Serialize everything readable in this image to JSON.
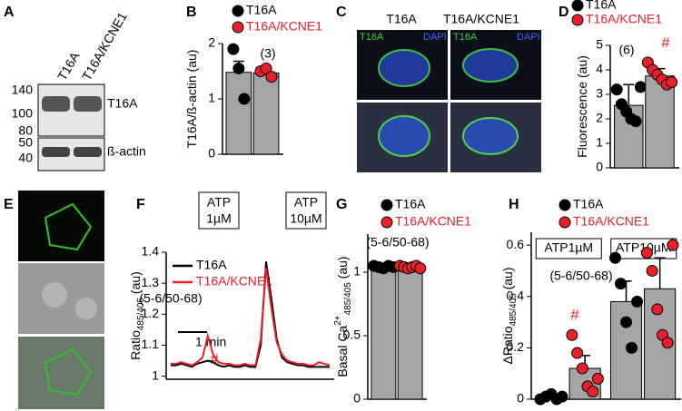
{
  "panel_a": {
    "label": "A",
    "lanes": [
      "T16A",
      "T16A/KCNE1"
    ],
    "markers": [
      "140",
      "100",
      "80",
      "50",
      "40"
    ],
    "bands": [
      "T16A",
      "ß-actin"
    ]
  },
  "panel_c": {
    "label": "C",
    "columns": [
      "T16A",
      "T16A/KCNE1"
    ],
    "channels": [
      "T16A",
      "DAPI"
    ]
  },
  "panel_e": {
    "label": "E"
  },
  "chart_data": [
    {
      "type": "bar",
      "label": "B",
      "ylabel": [
        "T16A/ß-actin (au)"
      ],
      "ylim": [
        0,
        2
      ],
      "yticks": [
        0,
        1,
        2
      ],
      "categories": [
        null
      ],
      "bar_color": "#a5a5a5",
      "annotations": [
        "(3)"
      ],
      "series": [
        {
          "name": "T16A",
          "color": "#000000",
          "values": [
            1.48
          ],
          "errors": [
            0.2
          ],
          "points": [
            [
              1.9,
              1.55,
              1.0
            ]
          ]
        },
        {
          "name": "T16A/KCNE1",
          "color": "#e8202a",
          "values": [
            1.47
          ],
          "errors": [
            0.05
          ],
          "points": [
            [
              1.5,
              1.55,
              1.4
            ]
          ]
        }
      ]
    },
    {
      "type": "bar",
      "label": "D",
      "ylabel": [
        "Fluorescence (au)"
      ],
      "ylim": [
        0,
        5
      ],
      "yticks": [
        0,
        1,
        2,
        3,
        4,
        5
      ],
      "categories": [
        null
      ],
      "bar_color": "#a5a5a5",
      "annotations": [
        "(6)",
        "#"
      ],
      "series": [
        {
          "name": "T16A",
          "color": "#000000",
          "values": [
            2.55
          ],
          "errors": [
            0.85
          ],
          "points": [
            [
              3.2,
              2.6,
              2.3,
              2.0,
              1.9,
              3.3
            ]
          ]
        },
        {
          "name": "T16A/KCNE1",
          "color": "#e8202a",
          "values": [
            3.75
          ],
          "errors": [
            0.3
          ],
          "points": [
            [
              4.3,
              4.0,
              3.8,
              3.6,
              3.4,
              3.5
            ]
          ]
        }
      ]
    },
    {
      "type": "line",
      "label": "F",
      "ylabel": [
        "Ratio",
        "485/405",
        " (au)"
      ],
      "ylim": [
        0.99,
        1.4
      ],
      "yticks": [
        1,
        1.1,
        1.2,
        1.3,
        1.4
      ],
      "xlim": [
        0,
        30
      ],
      "x": [
        0,
        1,
        2,
        3,
        4,
        5,
        6,
        7,
        8,
        9,
        10,
        11,
        12,
        13,
        14,
        15,
        16,
        17,
        18,
        19,
        20,
        21,
        22,
        23,
        24,
        25,
        26,
        27,
        28,
        29,
        30
      ],
      "stimuli": [
        [
          "ATP",
          "1µM"
        ],
        [
          "ATP",
          "10µM"
        ]
      ],
      "annotations": [
        "(5-6/50-68)",
        "1 min",
        "#"
      ],
      "series": [
        {
          "name": "T16A",
          "color": "#000000",
          "values": [
            1.035,
            1.035,
            1.04,
            1.035,
            1.03,
            1.04,
            1.045,
            1.05,
            1.045,
            1.035,
            1.03,
            1.035,
            1.03,
            1.03,
            1.035,
            1.03,
            1.03,
            1.1,
            1.37,
            1.25,
            1.12,
            1.06,
            1.045,
            1.04,
            1.035,
            1.035,
            1.03,
            1.03,
            1.03,
            1.03,
            1.03
          ]
        },
        {
          "name": "T16A/KCNE1",
          "color": "#e8202a",
          "values": [
            1.04,
            1.04,
            1.045,
            1.04,
            1.035,
            1.045,
            1.06,
            1.13,
            1.07,
            1.045,
            1.04,
            1.04,
            1.035,
            1.035,
            1.04,
            1.035,
            1.035,
            1.12,
            1.35,
            1.22,
            1.11,
            1.07,
            1.05,
            1.045,
            1.04,
            1.04,
            1.035,
            1.035,
            1.045,
            1.04,
            1.035
          ]
        }
      ]
    },
    {
      "type": "bar",
      "label": "G",
      "ylabel": [
        "Basal Ca",
        "2+",
        "485/405",
        " (au)"
      ],
      "ylim": [
        0,
        1.3
      ],
      "yticks": [
        0,
        0.5,
        1
      ],
      "categories": [
        null
      ],
      "bar_color": "#a5a5a5",
      "annotations": [
        "(5-6/50-68)"
      ],
      "series": [
        {
          "name": "T16A",
          "color": "#000000",
          "values": [
            1.04
          ],
          "errors": [
            0.01
          ],
          "points": [
            [
              1.05,
              1.04,
              1.03,
              1.05,
              1.04
            ]
          ]
        },
        {
          "name": "T16A/KCNE1",
          "color": "#e8202a",
          "values": [
            1.03
          ],
          "errors": [
            0.01
          ],
          "points": [
            [
              1.05,
              1.04,
              1.03,
              1.04,
              1.05,
              1.03
            ]
          ]
        }
      ]
    },
    {
      "type": "bar",
      "label": "H",
      "ylabel": [
        "ΔRatio",
        "485/405",
        " (au)"
      ],
      "ylim": [
        0,
        0.65
      ],
      "yticks": [
        0,
        0.2,
        0.4,
        0.6
      ],
      "categories": [
        "ATP1µM",
        "ATP10µM"
      ],
      "bar_color": "#a5a5a5",
      "annotations": [
        "(5-6/50-68)",
        "#"
      ],
      "series": [
        {
          "name": "T16A",
          "color": "#000000",
          "values": [
            0.01,
            0.38
          ],
          "errors": [
            0.01,
            0.08
          ],
          "points": [
            [
              0,
              0.01,
              0.02,
              0,
              0.01
            ],
            [
              0.55,
              0.45,
              0.3,
              0.2,
              0.38
            ]
          ]
        },
        {
          "name": "T16A/KCNE1",
          "color": "#e8202a",
          "values": [
            0.12,
            0.43
          ],
          "errors": [
            0.05,
            0.12
          ],
          "points": [
            [
              0.25,
              0.18,
              0.12,
              0.05,
              0.03,
              0.08
            ],
            [
              0.57,
              0.5,
              0.35,
              0.25,
              0.22,
              0.6
            ]
          ]
        }
      ]
    }
  ]
}
